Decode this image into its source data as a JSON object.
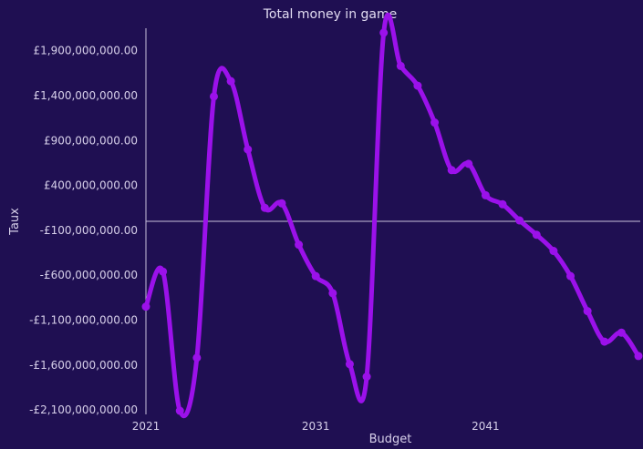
{
  "chart_data": {
    "type": "line",
    "title": "Total money in game",
    "xlabel": "Budget",
    "ylabel": "Taux",
    "xlim": [
      2021,
      2050
    ],
    "ylim": [
      -2150000000,
      2150000000
    ],
    "x_ticks": [
      2021,
      2031,
      2041
    ],
    "y_ticks": [
      {
        "value": 1900000000,
        "label": "£1,900,000,000.00"
      },
      {
        "value": 1400000000,
        "label": "£1,400,000,000.00"
      },
      {
        "value": 900000000,
        "label": "£900,000,000.00"
      },
      {
        "value": 400000000,
        "label": "£400,000,000.00"
      },
      {
        "value": -100000000,
        "label": "-£100,000,000.00"
      },
      {
        "value": -600000000,
        "label": "-£600,000,000.00"
      },
      {
        "value": -1100000000,
        "label": "-£1,100,000,000.00"
      },
      {
        "value": -1600000000,
        "label": "-£1,600,000,000.00"
      },
      {
        "value": -2100000000,
        "label": "-£2,100,000,000.00"
      }
    ],
    "zero_line": true,
    "grid": false,
    "colors": {
      "background": "#1f0f52",
      "line": "#9b11ea",
      "axis": "#c8c0dc",
      "text": "#d7d0ea"
    },
    "series": [
      {
        "x": [
          2021,
          2022,
          2023,
          2024,
          2025,
          2026,
          2027,
          2028,
          2029,
          2030,
          2031,
          2032,
          2033,
          2034,
          2035,
          2036,
          2037,
          2038,
          2039,
          2040,
          2041,
          2042,
          2043,
          2044,
          2045,
          2046,
          2047,
          2048,
          2049,
          2050
        ],
        "values": [
          -950000000,
          -560000000,
          -2110000000,
          -1520000000,
          1390000000,
          1560000000,
          800000000,
          150000000,
          200000000,
          -260000000,
          -610000000,
          -800000000,
          -1590000000,
          -1730000000,
          2100000000,
          1730000000,
          1510000000,
          1100000000,
          570000000,
          640000000,
          290000000,
          190000000,
          10000000,
          -150000000,
          -330000000,
          -610000000,
          -1000000000,
          -1340000000,
          -1240000000,
          -1500000000
        ]
      }
    ]
  }
}
